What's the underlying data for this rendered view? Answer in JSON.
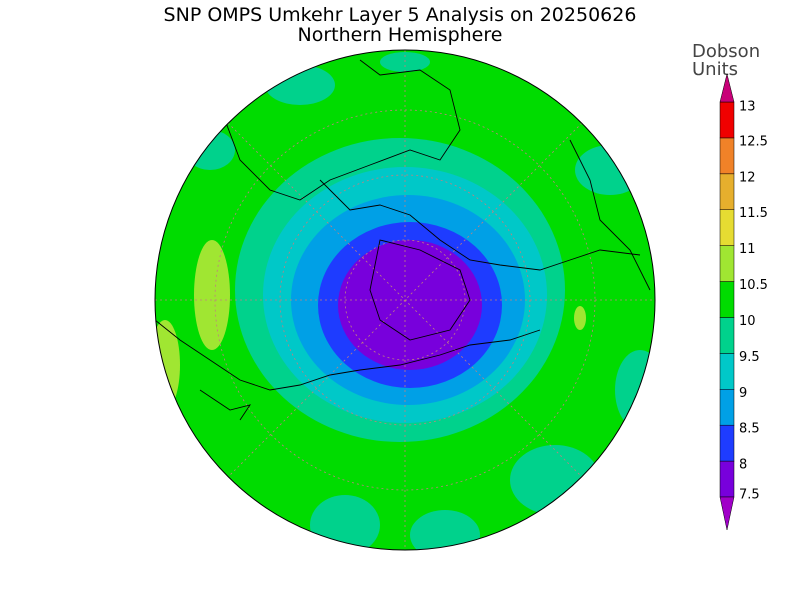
{
  "header": {
    "title": "SNP OMPS Umkehr Layer 5 Analysis on 20250626",
    "subtitle": "Northern Hemisphere"
  },
  "colorbar": {
    "units": [
      "Dobson",
      "Units"
    ],
    "levels": [
      7.5,
      8,
      8.5,
      9,
      9.5,
      10,
      10.5,
      11,
      11.5,
      12,
      12.5,
      13
    ],
    "colors": [
      "#7800dc",
      "#1e3cff",
      "#00a0e6",
      "#00c8c8",
      "#00d28c",
      "#00dc00",
      "#a0e632",
      "#e6dc32",
      "#e6af2d",
      "#f08228",
      "#f00000"
    ],
    "under_color": "#a000c8",
    "over_color": "#c80078"
  }
}
